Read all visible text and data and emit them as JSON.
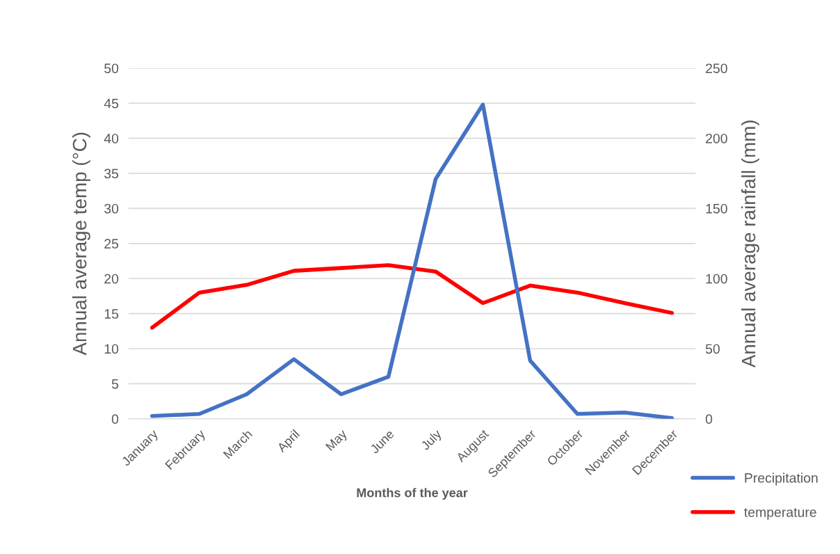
{
  "chart_data": {
    "type": "line",
    "xlabel": "Months of the year",
    "ylabel": "Annual average temp (°C)",
    "y2label": "Annual average rainfall (mm)",
    "categories": [
      "January",
      "February",
      "March",
      "April",
      "May",
      "June",
      "July",
      "August",
      "September",
      "October",
      "November",
      "December"
    ],
    "series": [
      {
        "name": "Precipitation",
        "color": "#4472c4",
        "axis": "y2",
        "values": [
          2,
          3.5,
          17.5,
          42.5,
          17.5,
          30,
          171,
          224,
          41.5,
          3.5,
          4.5,
          0.5
        ]
      },
      {
        "name": "temperature",
        "color": "#ff0000",
        "values": [
          13,
          18,
          19.1,
          21.1,
          21.5,
          21.9,
          21,
          16.5,
          19,
          18,
          16.5,
          15.1
        ]
      }
    ],
    "ylim": [
      0,
      50
    ],
    "yticks": [
      0,
      5,
      10,
      15,
      20,
      25,
      30,
      35,
      40,
      45,
      50
    ],
    "y2lim": [
      0,
      250
    ],
    "y2ticks": [
      0,
      50,
      100,
      150,
      200,
      250
    ],
    "grid": "y",
    "legend": "bottom right",
    "marker": "none",
    "line_style": "solid"
  }
}
